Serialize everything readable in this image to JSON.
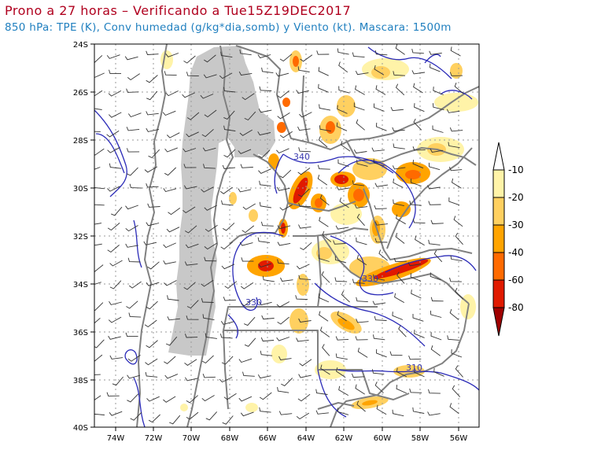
{
  "header": {
    "title": "Prono a 27 horas – Verificando a Tue15Z19DEC2017",
    "subtitle": "850 hPa: TPE (K), Conv humedad (g/kg*dia,somb) y Viento (kt). Mascara: 1500m"
  },
  "map": {
    "lat_ticks": [
      "24S",
      "26S",
      "28S",
      "30S",
      "32S",
      "34S",
      "36S",
      "38S",
      "40S"
    ],
    "lon_ticks": [
      "74W",
      "72W",
      "70W",
      "68W",
      "66W",
      "64W",
      "62W",
      "60W",
      "58W",
      "56W"
    ],
    "contour_labels": [
      "340",
      "330",
      "330",
      "310"
    ],
    "colors": {
      "mask": "#c8c8c8",
      "contour": "#2b2bb8",
      "border": "#808080",
      "grid": "#9a9a9a"
    }
  },
  "colorbar": {
    "labels": [
      "-10",
      "-20",
      "-30",
      "-40",
      "-60",
      "-80"
    ],
    "colors": [
      "#ffffff",
      "#fff3a8",
      "#ffd060",
      "#ffa400",
      "#ff6a00",
      "#e01a00",
      "#a00000"
    ]
  }
}
